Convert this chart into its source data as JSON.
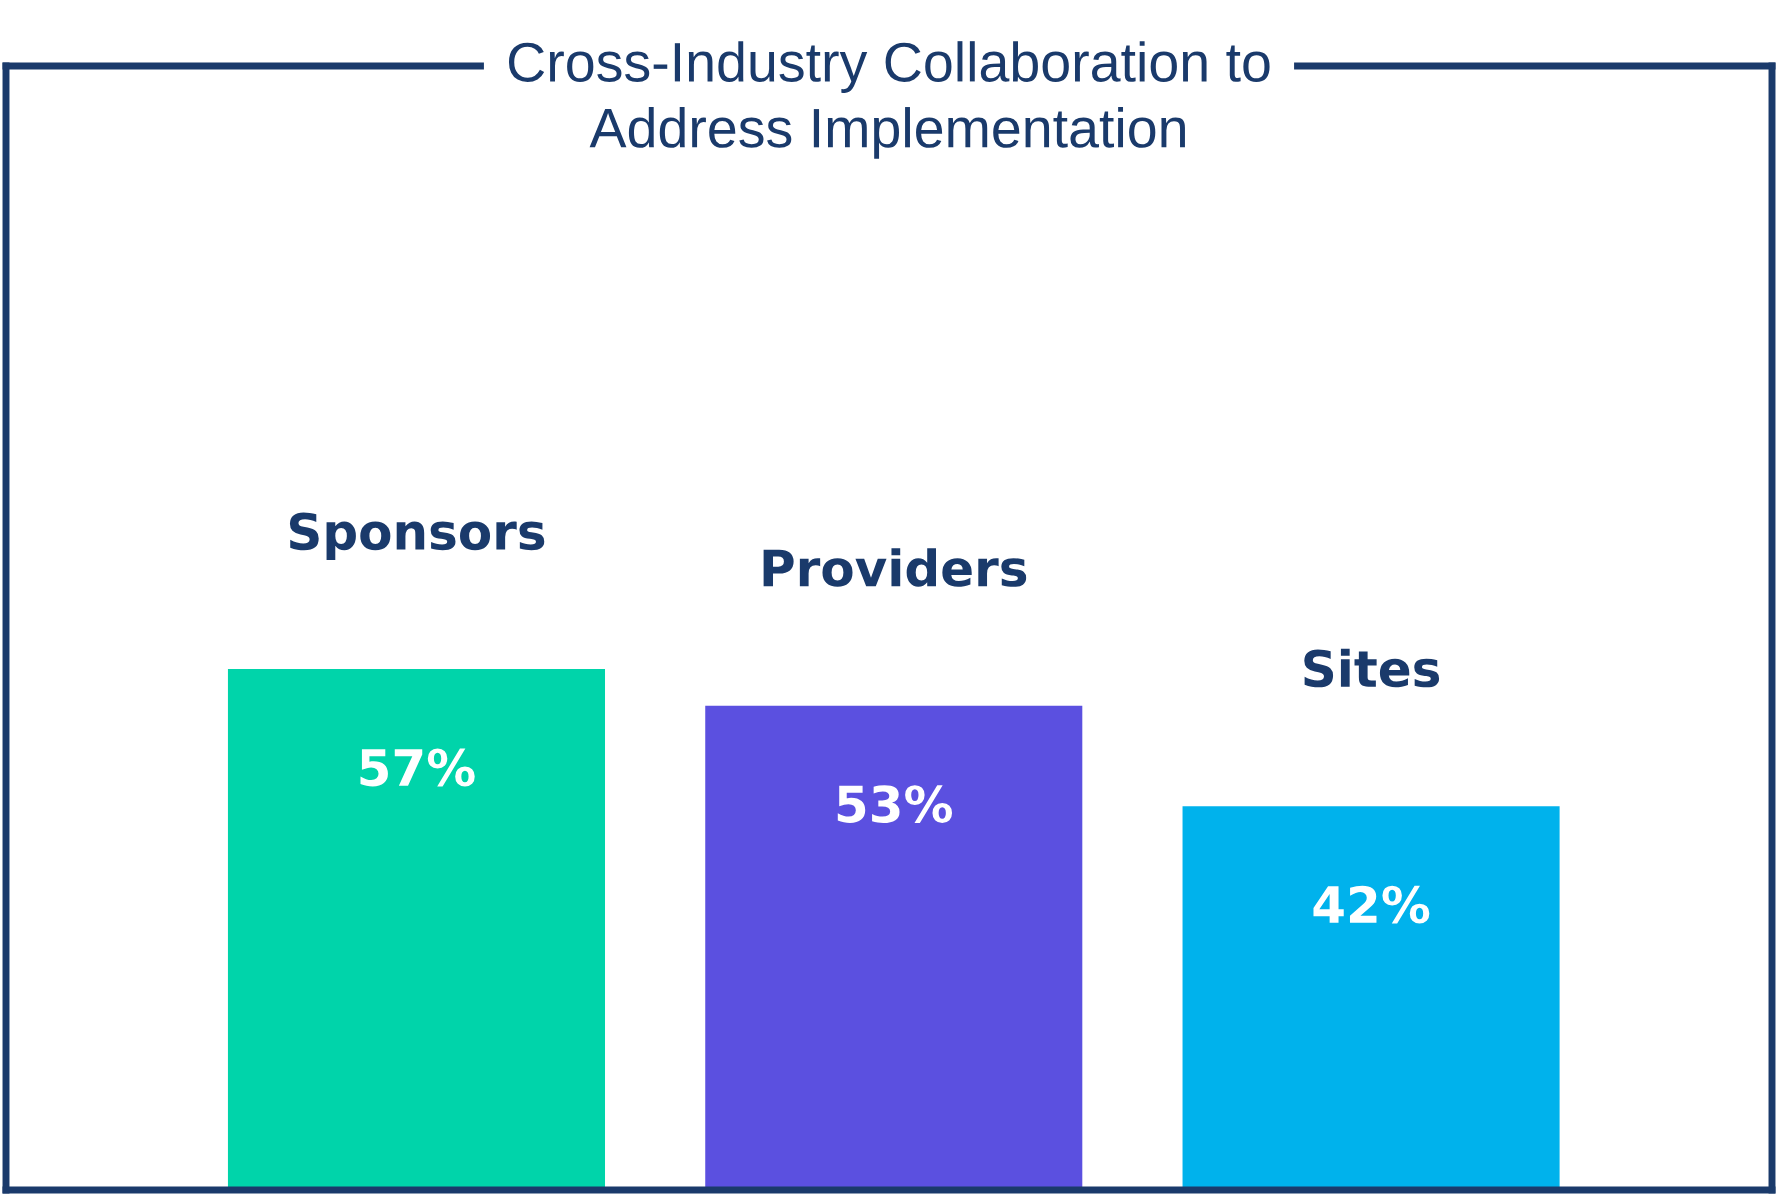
{
  "chart_data": {
    "type": "bar",
    "title": "Cross-Industry Collaboration to\nAddress Implementation",
    "categories": [
      "Sponsors",
      "Providers",
      "Sites"
    ],
    "values": [
      57,
      53,
      42
    ],
    "colors": [
      "#00d4aa",
      "#5b50e0",
      "#00b2ec"
    ],
    "value_labels": [
      "57%",
      "53%",
      "42%"
    ],
    "ylim": [
      0,
      123
    ]
  }
}
